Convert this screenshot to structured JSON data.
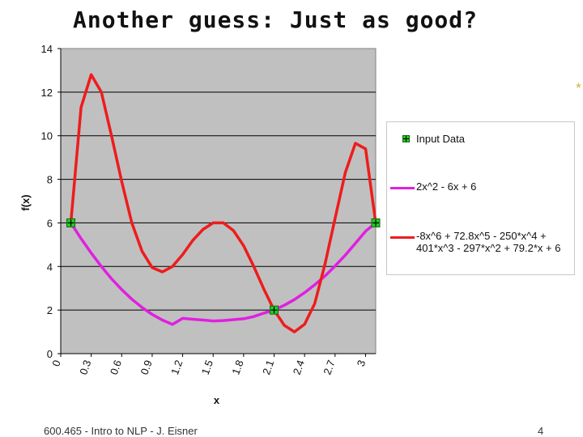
{
  "slide": {
    "title": "Another guess: Just as good?",
    "footer_left": "600.465 - Intro to NLP - J. Eisner",
    "page_number": "4"
  },
  "colors": {
    "plot_bg": "#c0c0c0",
    "input_data": "#22cc22",
    "quadratic": "#e020e0",
    "poly6": "#ee1c1c"
  },
  "chart_data": {
    "type": "line",
    "xlabel": "x",
    "ylabel": "f(x)",
    "xlim": [
      0,
      3.1
    ],
    "ylim": [
      0,
      14
    ],
    "x_ticks": [
      "0",
      "0.3",
      "0.6",
      "0.9",
      "1.2",
      "1.5",
      "1.8",
      "2.1",
      "2.4",
      "2.7",
      "3"
    ],
    "x_tick_values": [
      0,
      0.3,
      0.6,
      0.9,
      1.2,
      1.5,
      1.8,
      2.1,
      2.4,
      2.7,
      3
    ],
    "y_ticks": [
      "0",
      "2",
      "4",
      "6",
      "8",
      "10",
      "12",
      "14"
    ],
    "y_tick_values": [
      0,
      2,
      4,
      6,
      8,
      10,
      12,
      14
    ],
    "grid": "horizontal",
    "legend_position": "right",
    "series": [
      {
        "name": "Input Data",
        "kind": "points",
        "x": [
          0.1,
          2.1,
          3.1
        ],
        "y": [
          6,
          2,
          6
        ]
      },
      {
        "name": "2x^2 - 6x + 6",
        "kind": "line",
        "x": [
          0.1,
          0.2,
          0.3,
          0.4,
          0.5,
          0.6,
          0.7,
          0.8,
          0.9,
          1.0,
          1.1,
          1.2,
          1.3,
          1.4,
          1.5,
          1.6,
          1.7,
          1.8,
          1.9,
          2.0,
          2.1,
          2.2,
          2.3,
          2.4,
          2.5,
          2.6,
          2.7,
          2.8,
          2.9,
          3.0,
          3.1
        ],
        "y": [
          6.0,
          5.28,
          4.62,
          4.0,
          3.44,
          2.94,
          2.5,
          2.12,
          1.8,
          1.54,
          1.34,
          1.62,
          1.58,
          1.54,
          1.5,
          1.52,
          1.56,
          1.6,
          1.7,
          1.86,
          2.0,
          2.22,
          2.48,
          2.8,
          3.16,
          3.56,
          4.02,
          4.52,
          5.06,
          5.62,
          6.0
        ]
      },
      {
        "name": "-8x^6 + 72.8x^5 - 250*x^4 + 401*x^3 - 297*x^2 + 79.2*x + 6",
        "kind": "line",
        "x": [
          0.1,
          0.2,
          0.3,
          0.4,
          0.5,
          0.6,
          0.7,
          0.8,
          0.9,
          1.0,
          1.1,
          1.2,
          1.3,
          1.4,
          1.5,
          1.6,
          1.7,
          1.8,
          1.9,
          2.0,
          2.1,
          2.2,
          2.3,
          2.4,
          2.5,
          2.6,
          2.7,
          2.8,
          2.9,
          3.0,
          3.1
        ],
        "y": [
          6.0,
          11.3,
          12.8,
          12.0,
          10.0,
          7.9,
          6.0,
          4.7,
          3.95,
          3.75,
          4.0,
          4.55,
          5.2,
          5.7,
          6.0,
          6.0,
          5.65,
          4.95,
          4.0,
          2.95,
          2.0,
          1.3,
          1.0,
          1.35,
          2.3,
          4.1,
          6.2,
          8.3,
          9.65,
          9.4,
          6.0
        ]
      }
    ]
  }
}
